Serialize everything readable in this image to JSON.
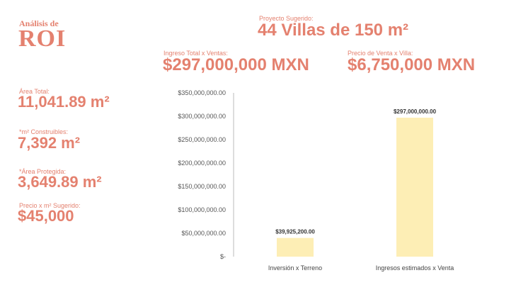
{
  "header": {
    "subtitle": "Análisis de",
    "title": "ROI"
  },
  "project": {
    "label": "Proyecto Sugerido:",
    "value": "44 Villas de 150 m²"
  },
  "income": {
    "label": "Ingreso Total x Ventas:",
    "value": "$297,000,000 MXN"
  },
  "price": {
    "label": "Precio de Venta x Villa:",
    "value": "$6,750,000 MXN"
  },
  "stats": [
    {
      "label": "Área Total:",
      "value": "11,041.89 m²"
    },
    {
      "label": "*m² Construibles:",
      "value": "7,392 m²"
    },
    {
      "label": "*Área Protegida:",
      "value": "3,649.89 m²"
    },
    {
      "label": "Precio x m² Sugerido:",
      "value": "$45,000"
    }
  ],
  "colors": {
    "accent": "#e4816f",
    "bar": "#fdeeb5"
  },
  "chart_data": {
    "type": "bar",
    "categories": [
      "Inversión x Terreno",
      "Ingresos estimados x Venta"
    ],
    "values": [
      39925200,
      297000000
    ],
    "data_labels": [
      "$39,925,200.00",
      "$297,000,000.00"
    ],
    "ylim": [
      0,
      350000000
    ],
    "yticks": [
      0,
      50000000,
      100000000,
      150000000,
      200000000,
      250000000,
      300000000,
      350000000
    ],
    "ytick_labels": [
      "$-",
      "$50,000,000.00",
      "$100,000,000.00",
      "$150,000,000.00",
      "$200,000,000.00",
      "$250,000,000.00",
      "$300,000,000.00",
      "$350,000,000.00"
    ],
    "grid": false,
    "title": "",
    "xlabel": "",
    "ylabel": ""
  }
}
